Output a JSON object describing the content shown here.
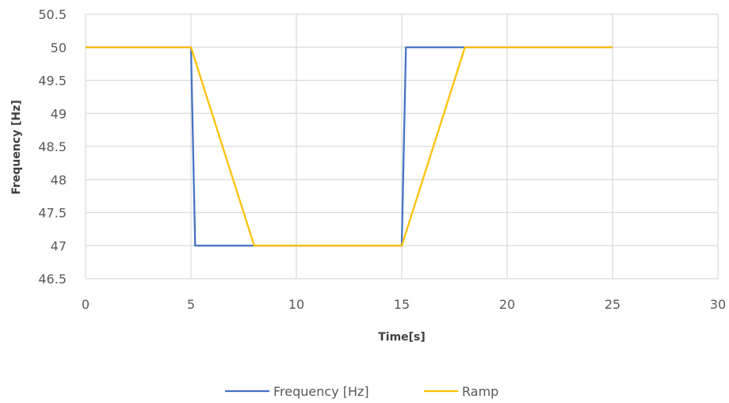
{
  "chart_data": {
    "type": "line",
    "title": "",
    "xlabel": "Time[s]",
    "ylabel": "Frequency [Hz]",
    "xlim": [
      0,
      30
    ],
    "ylim": [
      46.5,
      50.5
    ],
    "xticks": [
      0,
      5,
      10,
      15,
      20,
      25,
      30
    ],
    "yticks": [
      46.5,
      47,
      47.5,
      48,
      48.5,
      49,
      49.5,
      50,
      50.5
    ],
    "grid": true,
    "legend_position": "bottom",
    "series": [
      {
        "name": "Frequency [Hz]",
        "color": "#4472C4",
        "x": [
          0,
          5,
          5.2,
          15,
          15.2,
          18,
          25
        ],
        "y": [
          50,
          50,
          47,
          47,
          50,
          50,
          50
        ]
      },
      {
        "name": "Ramp",
        "color": "#FFC000",
        "x": [
          0,
          5,
          8,
          15,
          18,
          25
        ],
        "y": [
          50,
          50,
          47,
          47,
          50,
          50
        ]
      }
    ]
  }
}
